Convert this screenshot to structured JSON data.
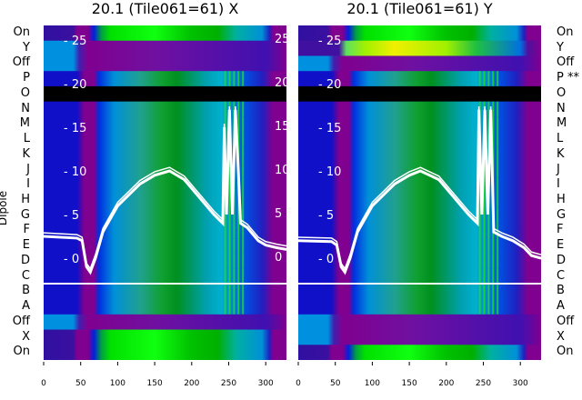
{
  "chart_data": [
    {
      "type": "heatmap",
      "title": "20.1 (Tile061=61) X",
      "ylabel": "Dipole",
      "rows": [
        "On",
        "Y",
        "Off",
        "P",
        "O",
        "N",
        "M",
        "L",
        "K",
        "J",
        "I",
        "H",
        "G",
        "F",
        "E",
        "D",
        "C",
        "B",
        "A",
        "Off",
        "X",
        "On"
      ],
      "x_ticks": [
        0,
        50,
        100,
        150,
        200,
        250,
        300
      ],
      "xlim": [
        0,
        328
      ],
      "overlay_ticks": [
        25,
        20,
        15,
        10,
        5,
        0
      ],
      "overlay_ylim": [
        -3.5,
        26.5
      ],
      "overlay_series": [
        [
          0,
          2.5
        ],
        [
          45,
          2.3
        ],
        [
          52,
          2
        ],
        [
          58,
          -1
        ],
        [
          63,
          -1.6
        ],
        [
          70,
          0
        ],
        [
          80,
          3
        ],
        [
          100,
          6
        ],
        [
          130,
          8.5
        ],
        [
          150,
          9.5
        ],
        [
          170,
          10
        ],
        [
          190,
          9
        ],
        [
          210,
          7
        ],
        [
          230,
          5
        ],
        [
          242,
          4
        ],
        [
          244,
          15
        ],
        [
          247,
          5
        ],
        [
          251,
          17
        ],
        [
          255,
          5
        ],
        [
          259,
          17
        ],
        [
          263,
          10
        ],
        [
          266,
          4
        ],
        [
          275,
          3.5
        ],
        [
          290,
          2
        ],
        [
          300,
          1.5
        ],
        [
          315,
          1.2
        ],
        [
          328,
          1
        ]
      ]
    },
    {
      "type": "heatmap",
      "title": "20.1 (Tile061=61) Y",
      "rows": [
        "On",
        "Y",
        "Off",
        "P **",
        "O",
        "N",
        "M",
        "L",
        "K",
        "J",
        "I",
        "H",
        "G",
        "F",
        "E",
        "D",
        "C",
        "B",
        "A",
        "Off",
        "X",
        "On"
      ],
      "x_ticks": [
        0,
        50,
        100,
        150,
        200,
        250,
        300
      ],
      "xlim": [
        0,
        328
      ],
      "overlay_ticks": [
        25,
        20,
        15,
        10,
        5,
        0
      ],
      "overlay_ylim": [
        -3.5,
        26.5
      ],
      "overlay_series": [
        [
          0,
          2
        ],
        [
          45,
          1.9
        ],
        [
          52,
          1.5
        ],
        [
          58,
          -1
        ],
        [
          63,
          -1.6
        ],
        [
          70,
          0
        ],
        [
          80,
          3
        ],
        [
          100,
          6
        ],
        [
          130,
          8.5
        ],
        [
          150,
          9.5
        ],
        [
          165,
          10
        ],
        [
          190,
          9
        ],
        [
          210,
          7
        ],
        [
          230,
          5
        ],
        [
          242,
          4
        ],
        [
          244,
          17
        ],
        [
          248,
          5
        ],
        [
          252,
          17
        ],
        [
          256,
          5
        ],
        [
          260,
          17
        ],
        [
          264,
          3
        ],
        [
          275,
          2.5
        ],
        [
          290,
          2
        ],
        [
          305,
          1.2
        ],
        [
          315,
          0.3
        ],
        [
          328,
          0
        ]
      ]
    }
  ],
  "colors": {
    "curve": "#ffffff",
    "masked": "#000000"
  }
}
